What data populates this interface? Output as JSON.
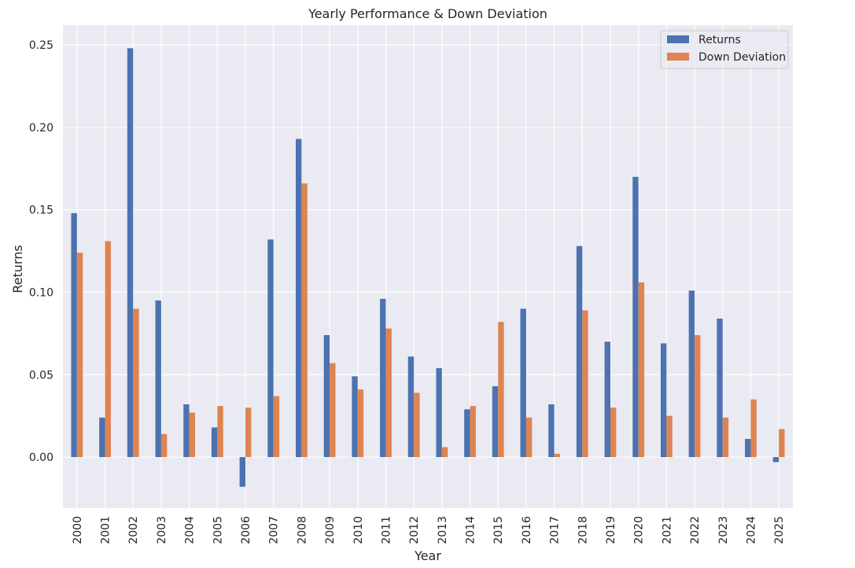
{
  "chart_data": {
    "type": "bar",
    "title": "Yearly Performance & Down Deviation",
    "xlabel": "Year",
    "ylabel": "Returns",
    "ylim": [
      -0.031,
      0.262
    ],
    "yticks": [
      0.0,
      0.05,
      0.1,
      0.15,
      0.2,
      0.25
    ],
    "ytick_labels": [
      "0.00",
      "0.05",
      "0.10",
      "0.15",
      "0.20",
      "0.25"
    ],
    "grid": true,
    "legend_position": "top-right",
    "categories": [
      "2000",
      "2001",
      "2002",
      "2003",
      "2004",
      "2005",
      "2006",
      "2007",
      "2008",
      "2009",
      "2010",
      "2011",
      "2012",
      "2013",
      "2014",
      "2015",
      "2016",
      "2017",
      "2018",
      "2019",
      "2020",
      "2021",
      "2022",
      "2023",
      "2024",
      "2025"
    ],
    "series": [
      {
        "name": "Returns",
        "color": "#4c72b0",
        "values": [
          0.148,
          0.024,
          0.248,
          0.095,
          0.032,
          0.018,
          -0.018,
          0.132,
          0.193,
          0.074,
          0.049,
          0.096,
          0.061,
          0.054,
          0.029,
          0.043,
          0.09,
          0.032,
          0.128,
          0.07,
          0.17,
          0.069,
          0.101,
          0.084,
          0.011,
          -0.003
        ]
      },
      {
        "name": "Down Deviation",
        "color": "#dd8452",
        "values": [
          0.124,
          0.131,
          0.09,
          0.014,
          0.027,
          0.031,
          0.03,
          0.037,
          0.166,
          0.057,
          0.041,
          0.078,
          0.039,
          0.006,
          0.031,
          0.082,
          0.024,
          0.002,
          0.089,
          0.03,
          0.106,
          0.025,
          0.074,
          0.024,
          0.035,
          0.017
        ]
      }
    ],
    "colors": {
      "plot_background": "#eaeaf2",
      "grid": "#ffffff",
      "text": "#262626"
    }
  }
}
